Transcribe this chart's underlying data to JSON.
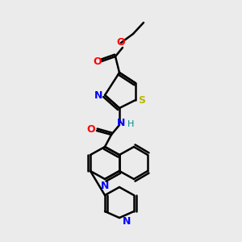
{
  "bg_color": "#ebebeb",
  "bond_color": "#000000",
  "bond_width": 1.8,
  "atom_colors": {
    "O": "#ff0000",
    "N": "#0000ff",
    "S": "#b8b800",
    "H": "#008b8b",
    "C": "#000000"
  },
  "figsize": [
    3.0,
    3.0
  ],
  "dpi": 100
}
